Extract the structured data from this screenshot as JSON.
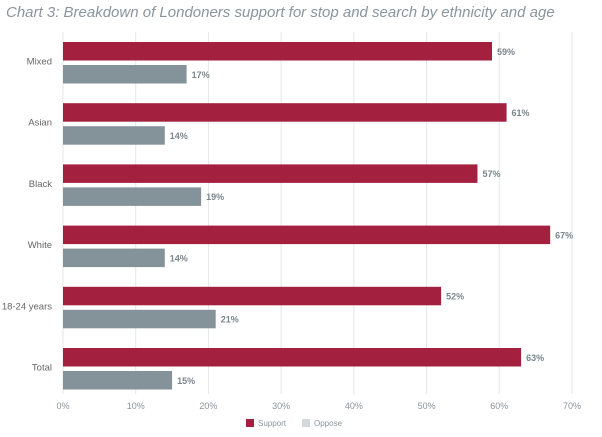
{
  "chart_data": {
    "type": "bar",
    "orientation": "horizontal",
    "title": "Chart 3: Breakdown of Londoners support for stop and search by ethnicity and age",
    "categories": [
      "Mixed",
      "Asian",
      "Black",
      "White",
      "18-24 years",
      "Total"
    ],
    "series": [
      {
        "name": "Support",
        "color": "#a3203f",
        "values": [
          59,
          61,
          57,
          67,
          52,
          63
        ]
      },
      {
        "name": "Oppose",
        "color": "#84939a",
        "legend_color": "#d3d8dc",
        "values": [
          17,
          14,
          19,
          14,
          21,
          15
        ]
      }
    ],
    "xlim": [
      0,
      70
    ],
    "xticks": [
      "0%",
      "10%",
      "20%",
      "30%",
      "40%",
      "50%",
      "60%",
      "70%"
    ],
    "value_suffix": "%",
    "grid": "vertical",
    "legend": "bottom"
  }
}
